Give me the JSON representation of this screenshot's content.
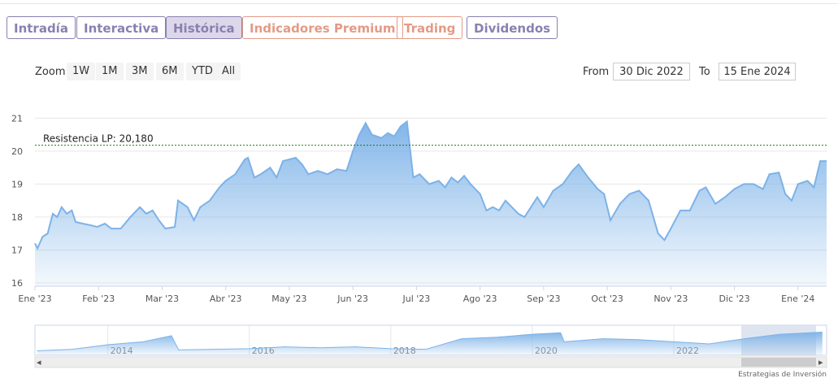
{
  "tabs": [
    "Intradía",
    "Interactiva",
    "Histórica",
    "Indicadores Premium",
    "Trading",
    "Dividendos"
  ],
  "zoom": {
    "label": "Zoom",
    "buttons": [
      "1W",
      "1M",
      "3M",
      "6M",
      "YTD",
      "All"
    ]
  },
  "range": {
    "from_label": "From",
    "from": "30 Dic 2022",
    "to_label": "To",
    "to": "15 Ene 2024"
  },
  "chart_data": {
    "type": "area",
    "color": "#7cb2e8",
    "grid": true,
    "x": [
      0,
      0.04,
      0.12,
      0.2,
      0.28,
      0.35,
      0.42,
      0.5,
      0.58,
      0.64,
      0.75,
      0.88,
      0.98,
      1.1,
      1.2,
      1.35,
      1.5,
      1.65,
      1.75,
      1.85,
      1.95,
      2.05,
      2.2,
      2.25,
      2.4,
      2.5,
      2.6,
      2.75,
      2.9,
      3.0,
      3.15,
      3.3,
      3.35,
      3.45,
      3.55,
      3.7,
      3.8,
      3.9,
      4.0,
      4.1,
      4.2,
      4.3,
      4.45,
      4.6,
      4.75,
      4.9,
      5.0,
      5.1,
      5.2,
      5.3,
      5.45,
      5.55,
      5.65,
      5.75,
      5.85,
      5.95,
      6.05,
      6.2,
      6.35,
      6.45,
      6.55,
      6.65,
      6.75,
      6.85,
      7.0,
      7.1,
      7.2,
      7.3,
      7.4,
      7.5,
      7.6,
      7.7,
      7.8,
      7.9,
      8.0,
      8.15,
      8.3,
      8.45,
      8.55,
      8.7,
      8.85,
      8.95,
      9.05,
      9.2,
      9.35,
      9.5,
      9.65,
      9.8,
      9.9,
      10.0,
      10.15,
      10.3,
      10.45,
      10.55,
      10.7,
      10.85,
      11.0,
      11.15,
      11.3,
      11.45,
      11.55,
      11.7,
      11.8,
      11.9,
      12.0,
      12.15,
      12.25,
      12.35,
      12.45
    ],
    "values": [
      17.2,
      17.05,
      17.4,
      17.5,
      18.1,
      18.0,
      18.3,
      18.1,
      18.2,
      17.85,
      17.8,
      17.75,
      17.7,
      17.8,
      17.65,
      17.65,
      18.0,
      18.3,
      18.1,
      18.2,
      17.9,
      17.65,
      17.7,
      18.5,
      18.3,
      17.9,
      18.3,
      18.5,
      18.9,
      19.1,
      19.3,
      19.75,
      19.8,
      19.2,
      19.3,
      19.5,
      19.2,
      19.7,
      19.75,
      19.8,
      19.6,
      19.3,
      19.4,
      19.3,
      19.45,
      19.4,
      20.0,
      20.5,
      20.85,
      20.5,
      20.4,
      20.55,
      20.45,
      20.75,
      20.9,
      19.2,
      19.3,
      19.0,
      19.1,
      18.9,
      19.2,
      19.05,
      19.25,
      19.0,
      18.7,
      18.2,
      18.3,
      18.2,
      18.5,
      18.3,
      18.1,
      18.0,
      18.3,
      18.6,
      18.3,
      18.8,
      19.0,
      19.4,
      19.6,
      19.2,
      18.85,
      18.7,
      17.9,
      18.4,
      18.7,
      18.8,
      18.5,
      17.5,
      17.3,
      17.65,
      18.2,
      18.2,
      18.8,
      18.9,
      18.4,
      18.6,
      18.85,
      19.0,
      19.0,
      18.85,
      19.3,
      19.35,
      18.7,
      18.5,
      19.0,
      19.1,
      18.9,
      19.7,
      19.7
    ],
    "xlim": [
      0,
      12.45
    ],
    "xticks": [
      {
        "value": 0,
        "label": "Ene '23"
      },
      {
        "value": 1,
        "label": "Feb '23"
      },
      {
        "value": 2,
        "label": "Mar '23"
      },
      {
        "value": 3,
        "label": "Abr '23"
      },
      {
        "value": 4,
        "label": "May '23"
      },
      {
        "value": 5,
        "label": "Jun '23"
      },
      {
        "value": 6,
        "label": "Jul '23"
      },
      {
        "value": 7,
        "label": "Ago '23"
      },
      {
        "value": 8,
        "label": "Sep '23"
      },
      {
        "value": 9,
        "label": "Oct '23"
      },
      {
        "value": 10,
        "label": "Nov '23"
      },
      {
        "value": 11,
        "label": "Dic '23"
      },
      {
        "value": 12,
        "label": "Ene '24"
      }
    ],
    "ylim": [
      15.9,
      21.8
    ],
    "yticks": [
      16,
      17,
      18,
      19,
      20,
      21
    ],
    "annotations": [
      {
        "label": "Resistencia LP: 20,180",
        "value": 20.18,
        "color": "#1a7a1a"
      }
    ]
  },
  "navigator": {
    "type": "area",
    "color": "#7cb2e8",
    "x": [
      2013.0,
      2013.5,
      2014,
      2014.5,
      2014.9,
      2015.0,
      2015.5,
      2016,
      2016.5,
      2017,
      2017.5,
      2018,
      2018.5,
      2019,
      2019.5,
      2020,
      2020.4,
      2020.45,
      2021,
      2021.5,
      2022,
      2022.5,
      2023,
      2023.5,
      2024.1
    ],
    "values": [
      13.5,
      14,
      15.5,
      16.5,
      18.5,
      13.8,
      14,
      14.2,
      14.8,
      14.5,
      14.8,
      14.2,
      14,
      17.5,
      18,
      19,
      19.5,
      16.5,
      17.5,
      17.2,
      16.5,
      15.8,
      17.5,
      19,
      19.7
    ],
    "xlim": [
      2012.97,
      2024.16
    ],
    "ylim": [
      12,
      22
    ],
    "xticks": [
      2014,
      2016,
      2018,
      2020,
      2022
    ]
  },
  "credit": "Estrategias de Inversión"
}
